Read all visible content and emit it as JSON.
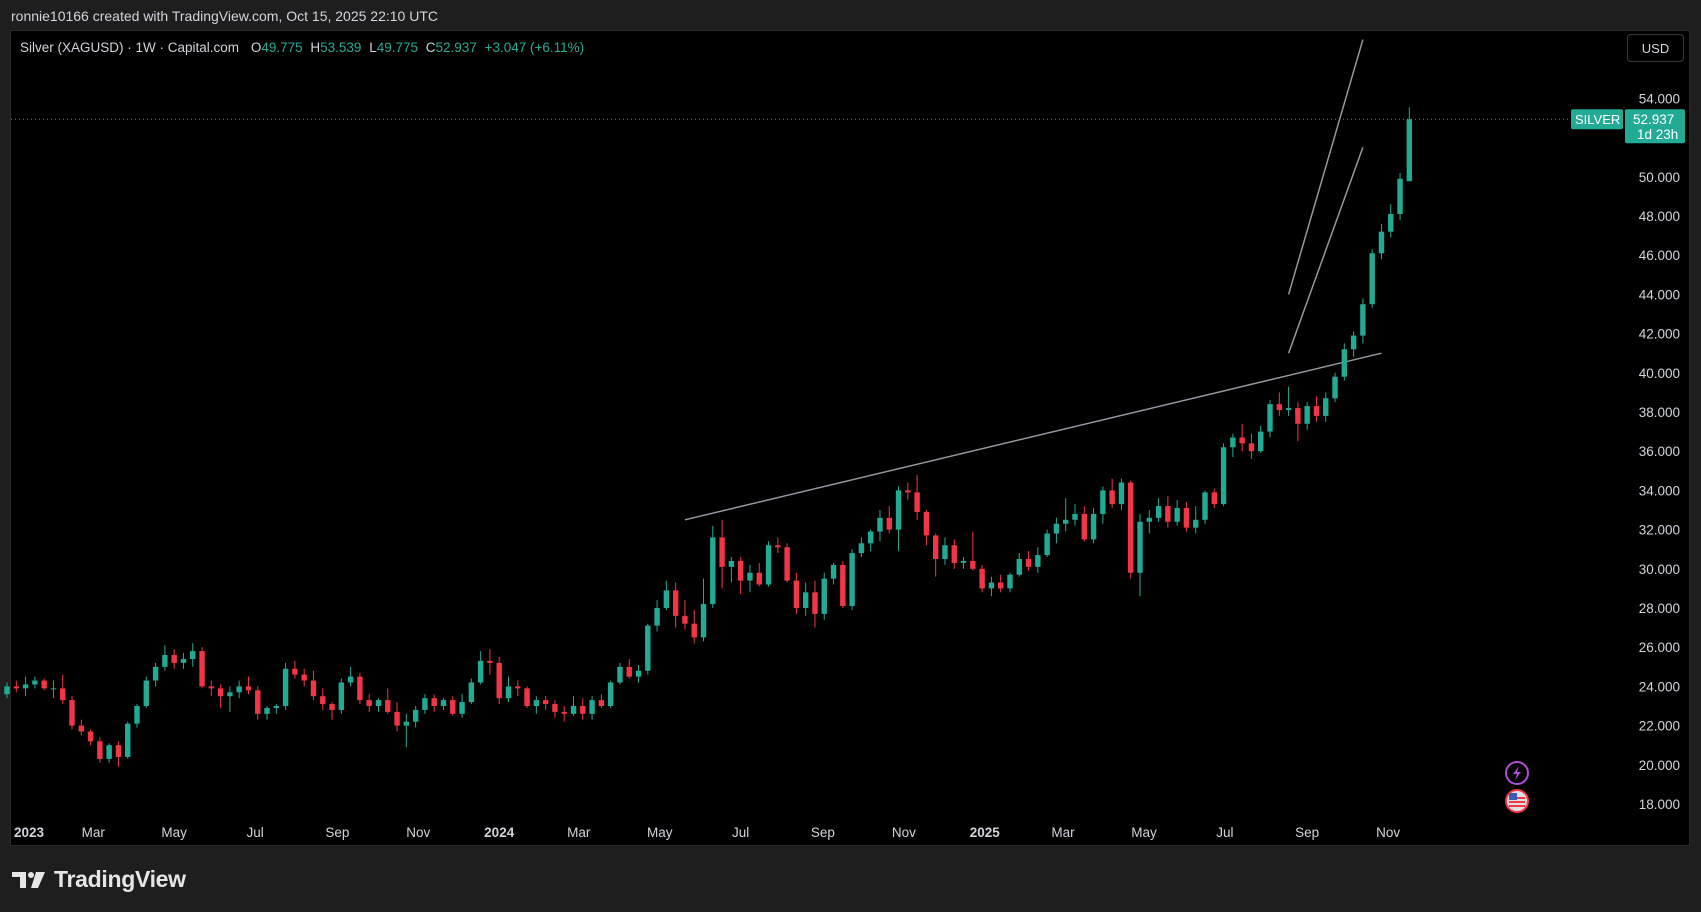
{
  "attribution": "ronnie10166 created with TradingView.com, Oct 15, 2025 22:10 UTC",
  "legend": {
    "symbol": "Silver (XAGUSD) · 1W · Capital.com",
    "o_label": "O",
    "o_value": "49.775",
    "h_label": "H",
    "h_value": "53.539",
    "l_label": "L",
    "l_value": "49.775",
    "c_label": "C",
    "c_value": "52.937",
    "change": "+3.047 (+6.11%)"
  },
  "currency_button": "USD",
  "price_tag": {
    "name": "SILVER",
    "price": "52.937",
    "countdown": "1d 23h"
  },
  "brand": "TradingView",
  "icons": [
    "lightning-icon",
    "us-flag-icon"
  ],
  "colors": {
    "up": "#22ab94",
    "down": "#f23645",
    "background": "#000000",
    "trendline": "#9598a1"
  },
  "chart_data": {
    "type": "candlestick",
    "interval": "1W",
    "ylim": [
      17,
      57
    ],
    "y_ticks": [
      "18.000",
      "20.000",
      "22.000",
      "24.000",
      "26.000",
      "28.000",
      "30.000",
      "32.000",
      "34.000",
      "36.000",
      "38.000",
      "40.000",
      "42.000",
      "44.000",
      "46.000",
      "48.000",
      "50.000",
      "52.000",
      "54.000"
    ],
    "x_ticks": [
      {
        "label": "2023",
        "date": "2023-01-01",
        "bold": true
      },
      {
        "label": "Mar",
        "date": "2023-03-01"
      },
      {
        "label": "May",
        "date": "2023-05-01"
      },
      {
        "label": "Jul",
        "date": "2023-07-01"
      },
      {
        "label": "Sep",
        "date": "2023-09-01"
      },
      {
        "label": "Nov",
        "date": "2023-11-01"
      },
      {
        "label": "2024",
        "date": "2024-01-01",
        "bold": true
      },
      {
        "label": "Mar",
        "date": "2024-03-01"
      },
      {
        "label": "May",
        "date": "2024-05-01"
      },
      {
        "label": "Jul",
        "date": "2024-07-01"
      },
      {
        "label": "Sep",
        "date": "2024-09-01"
      },
      {
        "label": "Nov",
        "date": "2024-11-01"
      },
      {
        "label": "2025",
        "date": "2025-01-01",
        "bold": true
      },
      {
        "label": "Mar",
        "date": "2025-03-01"
      },
      {
        "label": "May",
        "date": "2025-05-01"
      },
      {
        "label": "Jul",
        "date": "2025-07-01"
      },
      {
        "label": "Sep",
        "date": "2025-09-01"
      },
      {
        "label": "Nov",
        "date": "2025-11-01"
      }
    ],
    "first_candle_date": "2022-12-26",
    "candles_ohlc": [
      [
        23.6,
        24.2,
        23.4,
        24.0
      ],
      [
        24.0,
        24.3,
        23.7,
        23.9
      ],
      [
        23.9,
        24.5,
        23.5,
        24.1
      ],
      [
        24.1,
        24.5,
        23.9,
        24.3
      ],
      [
        24.3,
        24.4,
        23.8,
        23.9
      ],
      [
        23.9,
        24.3,
        23.4,
        23.9
      ],
      [
        23.9,
        24.6,
        23.1,
        23.3
      ],
      [
        23.3,
        23.5,
        21.8,
        22.0
      ],
      [
        22.0,
        22.3,
        21.5,
        21.7
      ],
      [
        21.7,
        21.8,
        21.0,
        21.2
      ],
      [
        21.2,
        21.4,
        20.1,
        20.3
      ],
      [
        20.3,
        21.1,
        20.1,
        21.0
      ],
      [
        21.0,
        21.2,
        19.9,
        20.4
      ],
      [
        20.4,
        22.2,
        20.3,
        22.1
      ],
      [
        22.1,
        23.1,
        21.9,
        23.0
      ],
      [
        23.0,
        24.5,
        22.9,
        24.3
      ],
      [
        24.3,
        25.2,
        24.0,
        25.0
      ],
      [
        25.0,
        26.1,
        24.8,
        25.6
      ],
      [
        25.6,
        25.9,
        24.9,
        25.2
      ],
      [
        25.2,
        25.7,
        24.9,
        25.4
      ],
      [
        25.4,
        26.2,
        25.0,
        25.8
      ],
      [
        25.8,
        26.0,
        23.9,
        24.0
      ],
      [
        24.0,
        24.3,
        23.5,
        23.9
      ],
      [
        23.9,
        24.1,
        22.9,
        23.5
      ],
      [
        23.5,
        24.0,
        22.7,
        23.7
      ],
      [
        23.7,
        24.3,
        23.4,
        24.0
      ],
      [
        24.0,
        24.5,
        23.6,
        23.8
      ],
      [
        23.8,
        24.0,
        22.3,
        22.6
      ],
      [
        22.6,
        23.0,
        22.3,
        22.9
      ],
      [
        22.9,
        23.1,
        22.6,
        23.0
      ],
      [
        23.0,
        25.2,
        22.8,
        24.9
      ],
      [
        24.9,
        25.3,
        24.4,
        24.6
      ],
      [
        24.6,
        24.9,
        24.0,
        24.3
      ],
      [
        24.3,
        24.8,
        23.3,
        23.5
      ],
      [
        23.5,
        23.9,
        22.8,
        23.1
      ],
      [
        23.1,
        23.2,
        22.3,
        22.8
      ],
      [
        22.8,
        24.4,
        22.6,
        24.2
      ],
      [
        24.2,
        25.0,
        24.0,
        24.5
      ],
      [
        24.5,
        24.7,
        23.1,
        23.3
      ],
      [
        23.3,
        23.6,
        22.7,
        23.0
      ],
      [
        23.0,
        23.4,
        22.7,
        23.3
      ],
      [
        23.3,
        23.9,
        22.6,
        22.7
      ],
      [
        22.7,
        23.2,
        21.7,
        22.0
      ],
      [
        22.0,
        22.6,
        20.9,
        22.2
      ],
      [
        22.2,
        23.0,
        21.9,
        22.8
      ],
      [
        22.8,
        23.6,
        22.6,
        23.4
      ],
      [
        23.4,
        23.6,
        22.7,
        23.0
      ],
      [
        23.0,
        23.4,
        22.8,
        23.3
      ],
      [
        23.3,
        23.5,
        22.5,
        22.6
      ],
      [
        22.6,
        23.6,
        22.4,
        23.2
      ],
      [
        23.2,
        24.4,
        23.1,
        24.2
      ],
      [
        24.2,
        25.8,
        24.1,
        25.3
      ],
      [
        25.3,
        25.9,
        24.6,
        25.2
      ],
      [
        25.2,
        25.5,
        23.1,
        23.4
      ],
      [
        23.4,
        24.5,
        23.2,
        24.0
      ],
      [
        24.0,
        24.3,
        23.5,
        23.9
      ],
      [
        23.9,
        24.0,
        22.9,
        23.0
      ],
      [
        23.0,
        23.5,
        22.6,
        23.3
      ],
      [
        23.3,
        23.5,
        22.8,
        23.1
      ],
      [
        23.1,
        23.3,
        22.4,
        22.7
      ],
      [
        22.7,
        23.0,
        22.2,
        22.6
      ],
      [
        22.6,
        23.5,
        22.5,
        23.0
      ],
      [
        23.0,
        23.4,
        22.3,
        22.6
      ],
      [
        22.6,
        23.5,
        22.3,
        23.3
      ],
      [
        23.3,
        23.6,
        22.9,
        23.0
      ],
      [
        23.0,
        24.3,
        22.9,
        24.2
      ],
      [
        24.2,
        25.2,
        24.1,
        25.0
      ],
      [
        25.0,
        25.4,
        24.4,
        24.5
      ],
      [
        24.5,
        25.1,
        24.2,
        24.8
      ],
      [
        24.8,
        27.2,
        24.6,
        27.1
      ],
      [
        27.1,
        28.4,
        26.8,
        28.0
      ],
      [
        28.0,
        29.4,
        27.9,
        28.9
      ],
      [
        28.9,
        29.3,
        27.0,
        27.6
      ],
      [
        27.6,
        28.4,
        26.9,
        27.2
      ],
      [
        27.2,
        27.9,
        26.2,
        26.5
      ],
      [
        26.5,
        29.5,
        26.3,
        28.2
      ],
      [
        28.2,
        32.2,
        28.0,
        31.6
      ],
      [
        31.6,
        32.5,
        29.0,
        30.1
      ],
      [
        30.1,
        30.6,
        29.3,
        30.4
      ],
      [
        30.4,
        30.6,
        28.7,
        29.4
      ],
      [
        29.4,
        30.2,
        28.8,
        29.8
      ],
      [
        29.8,
        30.3,
        29.1,
        29.2
      ],
      [
        29.2,
        31.4,
        29.1,
        31.2
      ],
      [
        31.2,
        31.6,
        30.8,
        31.1
      ],
      [
        31.1,
        31.3,
        29.3,
        29.4
      ],
      [
        29.4,
        29.8,
        27.7,
        28.0
      ],
      [
        28.0,
        29.3,
        27.6,
        28.8
      ],
      [
        28.8,
        29.4,
        27.0,
        27.7
      ],
      [
        27.7,
        29.8,
        27.4,
        29.5
      ],
      [
        29.5,
        30.3,
        29.2,
        30.2
      ],
      [
        30.2,
        30.4,
        28.0,
        28.1
      ],
      [
        28.1,
        31.0,
        27.9,
        30.8
      ],
      [
        30.8,
        31.6,
        30.6,
        31.3
      ],
      [
        31.3,
        32.0,
        30.9,
        31.9
      ],
      [
        31.9,
        33.0,
        31.4,
        32.6
      ],
      [
        32.6,
        33.2,
        31.8,
        32.0
      ],
      [
        32.0,
        34.2,
        30.9,
        34.0
      ],
      [
        34.0,
        34.4,
        33.5,
        33.9
      ],
      [
        33.9,
        34.8,
        32.5,
        32.9
      ],
      [
        32.9,
        33.0,
        31.2,
        31.7
      ],
      [
        31.7,
        31.8,
        29.6,
        30.5
      ],
      [
        30.5,
        31.6,
        30.2,
        31.2
      ],
      [
        31.2,
        31.5,
        30.0,
        30.3
      ],
      [
        30.3,
        30.6,
        30.0,
        30.4
      ],
      [
        30.4,
        31.9,
        29.9,
        30.0
      ],
      [
        30.0,
        30.2,
        28.8,
        29.0
      ],
      [
        29.0,
        29.6,
        28.6,
        29.3
      ],
      [
        29.3,
        29.7,
        28.8,
        29.0
      ],
      [
        29.0,
        29.8,
        28.8,
        29.7
      ],
      [
        29.7,
        30.8,
        29.6,
        30.5
      ],
      [
        30.5,
        30.9,
        29.9,
        30.1
      ],
      [
        30.1,
        31.1,
        29.8,
        30.7
      ],
      [
        30.7,
        32.0,
        30.6,
        31.8
      ],
      [
        31.8,
        32.6,
        31.3,
        32.3
      ],
      [
        32.3,
        33.6,
        31.9,
        32.5
      ],
      [
        32.5,
        33.3,
        32.2,
        32.8
      ],
      [
        32.8,
        33.2,
        31.4,
        31.5
      ],
      [
        31.5,
        33.1,
        31.3,
        32.8
      ],
      [
        32.8,
        34.2,
        32.3,
        34.0
      ],
      [
        34.0,
        34.6,
        33.1,
        33.3
      ],
      [
        33.3,
        34.6,
        33.0,
        34.4
      ],
      [
        34.4,
        34.5,
        29.5,
        29.8
      ],
      [
        29.8,
        32.8,
        28.6,
        32.4
      ],
      [
        32.4,
        33.0,
        31.8,
        32.6
      ],
      [
        32.6,
        33.6,
        32.4,
        33.2
      ],
      [
        33.2,
        33.7,
        32.1,
        32.4
      ],
      [
        32.4,
        33.5,
        32.2,
        33.1
      ],
      [
        33.1,
        33.4,
        31.9,
        32.1
      ],
      [
        32.1,
        33.2,
        31.8,
        32.5
      ],
      [
        32.5,
        34.0,
        32.3,
        33.9
      ],
      [
        33.9,
        34.1,
        33.1,
        33.3
      ],
      [
        33.3,
        36.4,
        33.2,
        36.2
      ],
      [
        36.2,
        36.9,
        35.7,
        36.7
      ],
      [
        36.7,
        37.4,
        36.0,
        36.4
      ],
      [
        36.4,
        36.9,
        35.6,
        36.0
      ],
      [
        36.0,
        37.3,
        35.9,
        37.0
      ],
      [
        37.0,
        38.6,
        36.7,
        38.4
      ],
      [
        38.4,
        39.0,
        37.8,
        38.1
      ],
      [
        38.1,
        39.3,
        37.8,
        38.2
      ],
      [
        38.2,
        38.5,
        36.5,
        37.4
      ],
      [
        37.4,
        38.5,
        37.1,
        38.3
      ],
      [
        38.3,
        38.8,
        37.5,
        37.8
      ],
      [
        37.8,
        39.0,
        37.5,
        38.7
      ],
      [
        38.7,
        40.0,
        38.5,
        39.8
      ],
      [
        39.8,
        41.5,
        39.6,
        41.2
      ],
      [
        41.2,
        42.1,
        40.8,
        41.9
      ],
      [
        41.9,
        43.8,
        41.5,
        43.5
      ],
      [
        43.5,
        46.3,
        43.3,
        46.1
      ],
      [
        46.1,
        47.6,
        45.8,
        47.2
      ],
      [
        47.2,
        48.6,
        46.9,
        48.1
      ],
      [
        48.1,
        50.2,
        47.8,
        49.9
      ],
      [
        49.775,
        53.539,
        49.775,
        52.937
      ]
    ],
    "trendlines": [
      {
        "x1": "2024-05-20",
        "y1": 32.5,
        "x2": "2025-10-27",
        "y2": 41.0
      },
      {
        "x1": "2025-08-18",
        "y1": 44.0,
        "x2": "2025-10-13",
        "y2": 57.0
      },
      {
        "x1": "2025-08-18",
        "y1": 41.0,
        "x2": "2025-10-13",
        "y2": 51.5
      }
    ],
    "last_price": 52.937
  }
}
